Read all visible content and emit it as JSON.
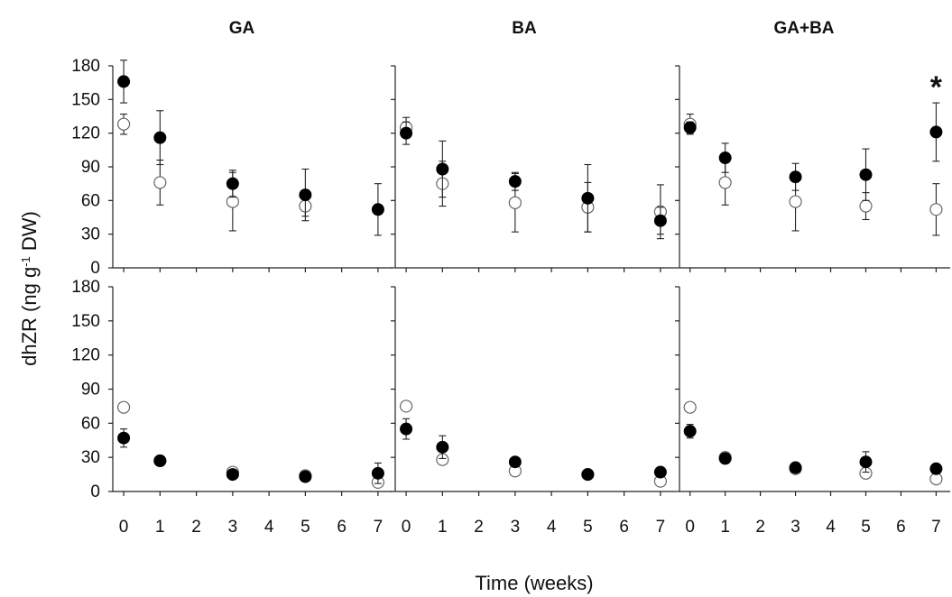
{
  "chart_data": {
    "type": "scatter",
    "ylabel": "dhZR (ng g-1 DW)",
    "ylabel_parts": {
      "main": "dhZR (ng g",
      "sup": "-1",
      "tail": " DW)"
    },
    "xlabel": "Time (weeks)",
    "x_ticks": [
      0,
      1,
      2,
      3,
      4,
      5,
      6,
      7
    ],
    "y_ticks": [
      0,
      30,
      60,
      90,
      120,
      150,
      180
    ],
    "xlim": [
      -0.3,
      7.4
    ],
    "ylim": [
      0,
      180
    ],
    "series_styles": [
      {
        "key": "filled",
        "color": "#000000",
        "marker": "filled-circle"
      },
      {
        "key": "open",
        "color": "#ffffff",
        "marker": "open-circle"
      }
    ],
    "panels": [
      {
        "id": "top-ga",
        "title": "GA",
        "row": 0,
        "col": 0,
        "filled": [
          [
            0,
            166,
            19
          ],
          [
            1,
            116,
            24
          ],
          [
            3,
            75,
            12
          ],
          [
            5,
            65,
            23
          ],
          [
            7,
            52,
            23
          ]
        ],
        "open": [
          [
            0,
            128,
            9
          ],
          [
            1,
            76,
            20
          ],
          [
            3,
            59,
            26
          ],
          [
            5,
            55,
            9
          ],
          [
            7,
            null,
            null
          ]
        ]
      },
      {
        "id": "top-ba",
        "title": "BA",
        "row": 0,
        "col": 1,
        "filled": [
          [
            0,
            120,
            10
          ],
          [
            1,
            88,
            25
          ],
          [
            3,
            77,
            8
          ],
          [
            5,
            62,
            30
          ],
          [
            7,
            42,
            12
          ]
        ],
        "open": [
          [
            0,
            125,
            9
          ],
          [
            1,
            75,
            20
          ],
          [
            3,
            58,
            26
          ],
          [
            5,
            54,
            22
          ],
          [
            7,
            50,
            24
          ]
        ]
      },
      {
        "id": "top-gaba",
        "title": "GA+BA",
        "row": 0,
        "col": 2,
        "annotation": "*",
        "filled": [
          [
            0,
            125,
            5
          ],
          [
            1,
            98,
            13
          ],
          [
            3,
            81,
            12
          ],
          [
            5,
            83,
            23
          ],
          [
            7,
            121,
            26
          ]
        ],
        "open": [
          [
            0,
            128,
            9
          ],
          [
            1,
            76,
            20
          ],
          [
            3,
            59,
            26
          ],
          [
            5,
            55,
            12
          ],
          [
            7,
            52,
            23
          ]
        ]
      },
      {
        "id": "bottom-ga",
        "row": 1,
        "col": 0,
        "filled": [
          [
            0,
            47,
            8
          ],
          [
            1,
            27,
            3
          ],
          [
            3,
            15,
            3
          ],
          [
            5,
            13,
            2
          ],
          [
            7,
            16,
            9
          ]
        ],
        "open": [
          [
            0,
            74,
            4
          ],
          [
            1,
            27,
            0
          ],
          [
            3,
            17,
            2
          ],
          [
            5,
            14,
            0
          ],
          [
            7,
            8,
            0
          ]
        ]
      },
      {
        "id": "bottom-ba",
        "row": 1,
        "col": 1,
        "filled": [
          [
            0,
            55,
            9
          ],
          [
            1,
            39,
            10
          ],
          [
            3,
            26,
            3
          ],
          [
            5,
            15,
            0
          ],
          [
            7,
            17,
            3
          ]
        ],
        "open": [
          [
            0,
            75,
            4
          ],
          [
            1,
            28,
            0
          ],
          [
            3,
            18,
            0
          ],
          [
            5,
            15,
            0
          ],
          [
            7,
            9,
            0
          ]
        ]
      },
      {
        "id": "bottom-gaba",
        "row": 1,
        "col": 2,
        "filled": [
          [
            0,
            53,
            6
          ],
          [
            1,
            29,
            4
          ],
          [
            3,
            21,
            3
          ],
          [
            5,
            26,
            9
          ],
          [
            7,
            20,
            0
          ]
        ],
        "open": [
          [
            0,
            74,
            4
          ],
          [
            1,
            30,
            0
          ],
          [
            3,
            20,
            0
          ],
          [
            5,
            16,
            0
          ],
          [
            7,
            11,
            0
          ]
        ]
      }
    ]
  }
}
